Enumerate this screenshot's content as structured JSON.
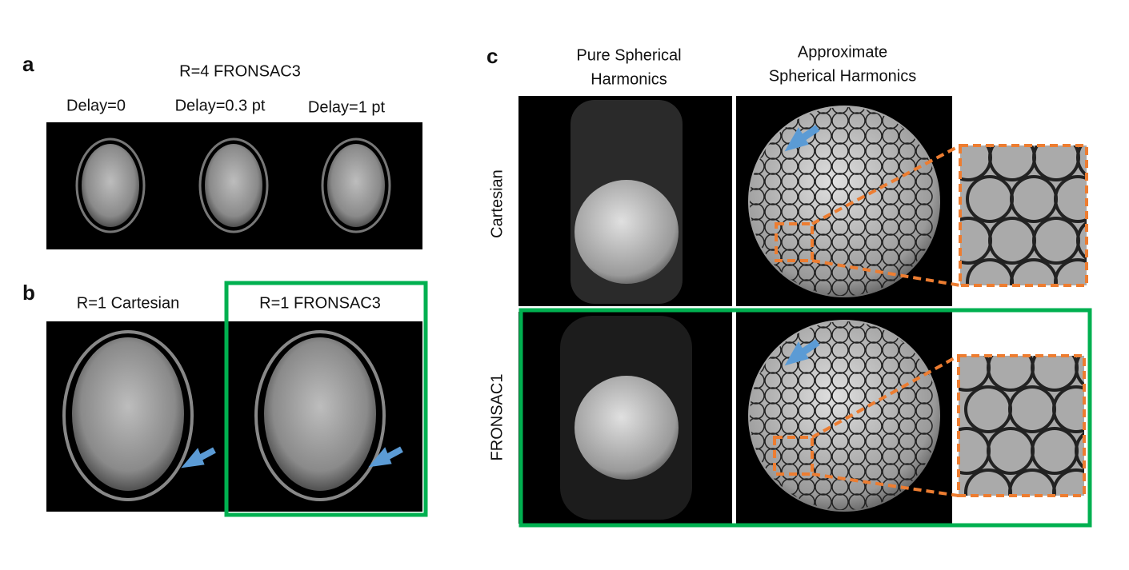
{
  "panels": {
    "a": {
      "label": "a",
      "title": "R=4 FRONSAC3",
      "columns": [
        "Delay=0",
        "Delay=0.3 pt",
        "Delay=1 pt"
      ]
    },
    "b": {
      "label": "b",
      "columns": [
        "R=1 Cartesian",
        "R=1 FRONSAC3"
      ]
    },
    "c": {
      "label": "c",
      "columns": [
        [
          "Pure Spherical",
          "Harmonics"
        ],
        [
          "Approximate",
          "Spherical Harmonics"
        ]
      ],
      "rows": [
        "Cartesian",
        "FRONSAC1"
      ]
    }
  }
}
